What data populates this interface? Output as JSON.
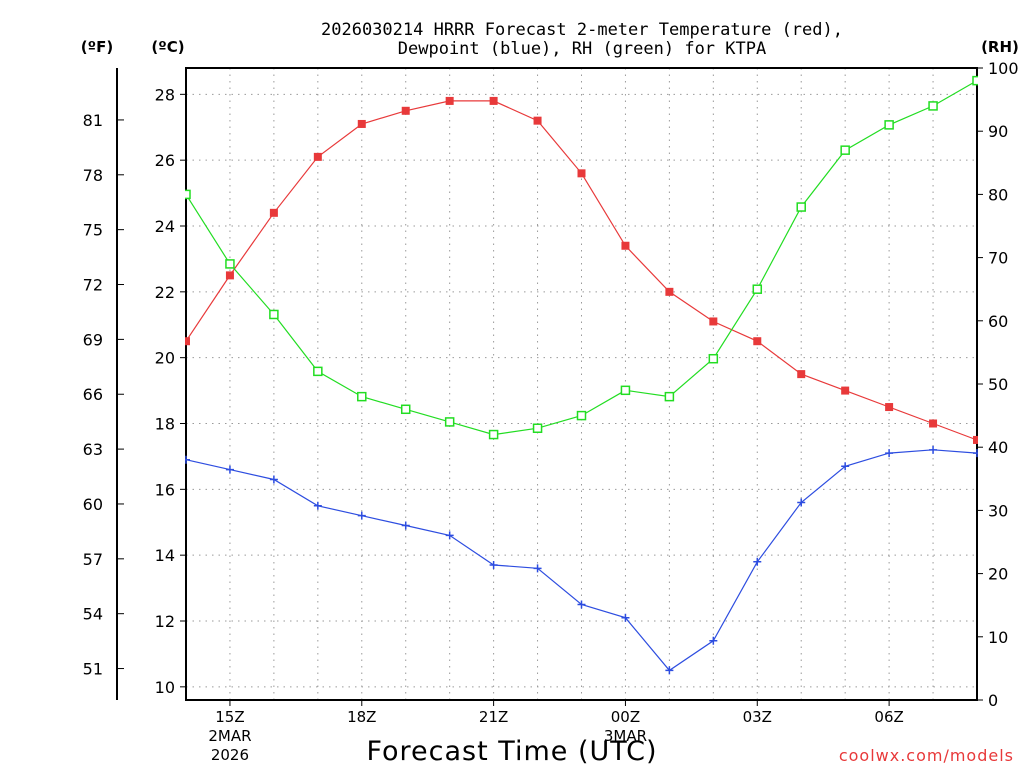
{
  "chart_data": {
    "type": "line",
    "title_line1": "2026030214 HRRR Forecast 2-meter Temperature (red),",
    "title_line2": "Dewpoint (blue), RH (green) for KTPA",
    "xlabel": "Forecast Time (UTC)",
    "credit": "coolwx.com/models",
    "unit_f": "(ºF)",
    "unit_c": "(ºC)",
    "unit_rh": "(RH)",
    "x_hours_range": [
      14,
      32
    ],
    "c_range": [
      9.6,
      28.8
    ],
    "rh_range": [
      0,
      100
    ],
    "grid": true,
    "x_ticks": [
      {
        "h": 15,
        "label": "15Z",
        "sub1": "2MAR",
        "sub2": "2026"
      },
      {
        "h": 18,
        "label": "18Z"
      },
      {
        "h": 21,
        "label": "21Z"
      },
      {
        "h": 24,
        "label": "00Z",
        "sub1": "3MAR"
      },
      {
        "h": 27,
        "label": "03Z"
      },
      {
        "h": 30,
        "label": "06Z"
      }
    ],
    "c_ticks": [
      "10",
      "12",
      "14",
      "16",
      "18",
      "20",
      "22",
      "24",
      "26",
      "28"
    ],
    "f_ticks": [
      "51",
      "54",
      "57",
      "60",
      "63",
      "66",
      "69",
      "72",
      "75",
      "78",
      "81"
    ],
    "rh_ticks": [
      "0",
      "10",
      "20",
      "30",
      "40",
      "50",
      "60",
      "70",
      "80",
      "90",
      "100"
    ],
    "hours": [
      14,
      15,
      16,
      17,
      18,
      19,
      20,
      21,
      22,
      23,
      24,
      25,
      26,
      27,
      28,
      29,
      30,
      31,
      32
    ],
    "series": [
      {
        "name": "Temperature",
        "unit": "C",
        "color": "#e8393a",
        "marker": "filled-square",
        "values": [
          20.5,
          22.5,
          24.4,
          26.1,
          27.1,
          27.5,
          27.8,
          27.8,
          27.2,
          25.6,
          23.4,
          22.0,
          21.1,
          20.5,
          19.5,
          19.0,
          18.5,
          18.0,
          17.5
        ]
      },
      {
        "name": "Dewpoint",
        "unit": "C",
        "color": "#2d4de0",
        "marker": "plus",
        "values": [
          16.9,
          16.6,
          16.3,
          15.5,
          15.2,
          14.9,
          14.6,
          13.7,
          13.6,
          12.5,
          12.1,
          10.5,
          11.4,
          13.8,
          15.6,
          16.7,
          17.1,
          17.2,
          17.1
        ]
      },
      {
        "name": "RH",
        "unit": "%",
        "color": "#22dd22",
        "marker": "open-square",
        "values": [
          80,
          69,
          61,
          52,
          48,
          46,
          44,
          42,
          43,
          45,
          49,
          48,
          54,
          65,
          78,
          87,
          91,
          94,
          98
        ]
      }
    ]
  }
}
